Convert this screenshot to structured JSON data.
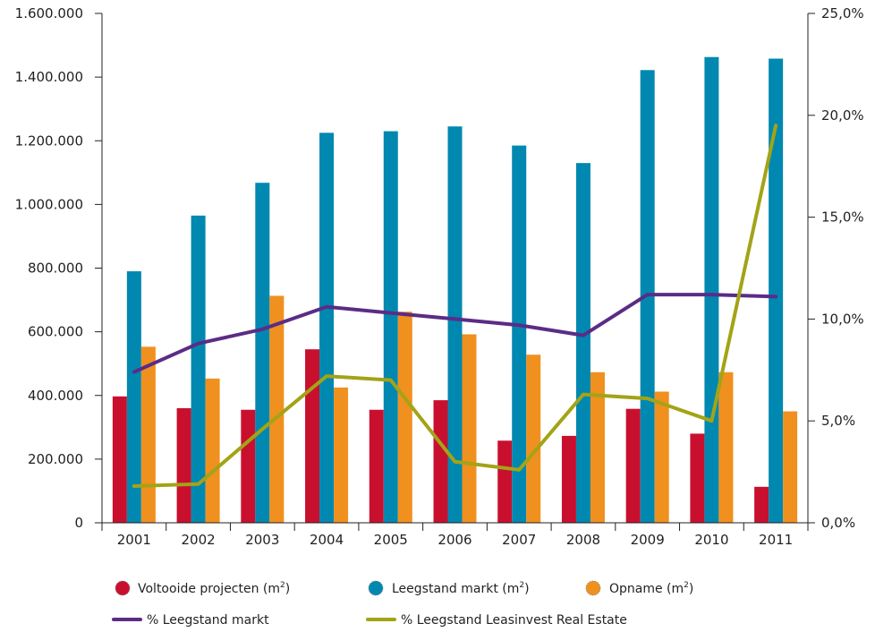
{
  "colors": {
    "voltooide": "#c8102e",
    "leegstand_markt_bar": "#0088b0",
    "opname": "#f0901e",
    "pct_leegstand_markt": "#5b2c86",
    "pct_leegstand_leasinvest": "#a3a317",
    "axis": "#231f20"
  },
  "chart_data": {
    "type": "bar",
    "categories": [
      "2001",
      "2002",
      "2003",
      "2004",
      "2005",
      "2006",
      "2007",
      "2008",
      "2009",
      "2010",
      "2011"
    ],
    "y_left": {
      "ylim": [
        0,
        1600000
      ],
      "ticks": [
        0,
        200000,
        400000,
        600000,
        800000,
        1000000,
        1200000,
        1400000,
        1600000
      ],
      "tick_labels": [
        "0",
        "200.000",
        "400.000",
        "600.000",
        "800.000",
        "1.000.000",
        "1.200.000",
        "1.400.000",
        "1.600.000"
      ]
    },
    "y_right": {
      "ylim": [
        0,
        25
      ],
      "ticks": [
        0,
        5,
        10,
        15,
        20,
        25
      ],
      "tick_labels": [
        "0,0%",
        "5,0%",
        "10,0%",
        "15,0%",
        "20,0%",
        "25,0%"
      ]
    },
    "series": [
      {
        "name": "Voltooide projecten (m²)",
        "kind": "bar",
        "axis": "left",
        "color_key": "voltooide",
        "values": [
          397000,
          360000,
          355000,
          545000,
          355000,
          385000,
          258000,
          273000,
          358000,
          280000,
          113000
        ]
      },
      {
        "name": "Leegstand markt (m²)",
        "kind": "bar",
        "axis": "left",
        "color_key": "leegstand_markt_bar",
        "values": [
          790000,
          965000,
          1068000,
          1225000,
          1230000,
          1245000,
          1185000,
          1130000,
          1422000,
          1463000,
          1458000
        ]
      },
      {
        "name": "Opname (m²)",
        "kind": "bar",
        "axis": "left",
        "color_key": "opname",
        "values": [
          553000,
          453000,
          713000,
          425000,
          663000,
          592000,
          528000,
          473000,
          412000,
          473000,
          350000
        ]
      },
      {
        "name": "% Leegstand markt",
        "kind": "line",
        "axis": "right",
        "color_key": "pct_leegstand_markt",
        "values": [
          7.4,
          8.8,
          9.5,
          10.6,
          10.3,
          10.0,
          9.7,
          9.2,
          11.2,
          11.2,
          11.1
        ]
      },
      {
        "name": "% Leegstand Leasinvest Real Estate",
        "kind": "line",
        "axis": "right",
        "color_key": "pct_leegstand_leasinvest",
        "values": [
          1.8,
          1.9,
          4.6,
          7.2,
          7.0,
          3.0,
          2.6,
          6.3,
          6.1,
          5.0,
          19.5
        ]
      }
    ],
    "grid": false,
    "legend_position": "bottom"
  },
  "legend": {
    "voltooide": {
      "label": "Voltooide projecten (m",
      "sup": "2",
      "close": ")"
    },
    "leegstand_markt": {
      "label": "Leegstand markt (m",
      "sup": "2",
      "close": ")"
    },
    "opname": {
      "label": "Opname (m",
      "sup": "2",
      "close": ")"
    },
    "pct_markt": {
      "label": "% Leegstand markt"
    },
    "pct_leasinvest": {
      "label": "% Leegstand Leasinvest Real Estate"
    }
  }
}
